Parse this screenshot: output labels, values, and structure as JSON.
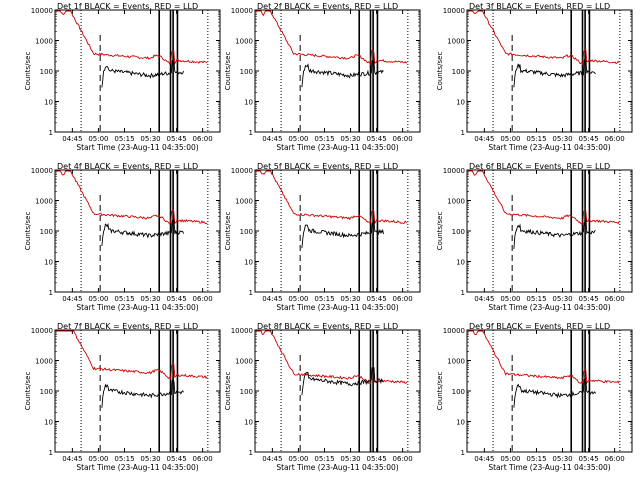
{
  "chart_data": {
    "type": "line",
    "grid": false,
    "ylabel": "Counts/sec",
    "xlabel": "Start Time (23-Aug-11 04:35:00)",
    "x_tick_labels": [
      "04:45",
      "05:00",
      "05:15",
      "05:30",
      "05:45",
      "06:00"
    ],
    "xlim_minutes_after_0435": [
      0,
      95
    ],
    "y_scale": "log",
    "ylim": [
      1,
      10000
    ],
    "y_tick_labels": [
      "1",
      "10",
      "100",
      "1000",
      "10000"
    ],
    "legend_text": "BLACK = Events, RED = LLD",
    "colors": {
      "events": "#000000",
      "lld": "#cc0000"
    },
    "panels": [
      {
        "title": "Det 1f BLACK = Events, RED = LLD"
      },
      {
        "title": "Det 2f BLACK = Events, RED = LLD"
      },
      {
        "title": "Det 3f BLACK = Events, RED = LLD"
      },
      {
        "title": "Det 4f BLACK = Events, RED = LLD"
      },
      {
        "title": "Det 5f BLACK = Events, RED = LLD"
      },
      {
        "title": "Det 6f BLACK = Events, RED = LLD"
      },
      {
        "title": "Det 7f BLACK = Events, RED = LLD"
      },
      {
        "title": "Det 8f BLACK = Events, RED = LLD"
      },
      {
        "title": "Det 9f BLACK = Events, RED = LLD"
      }
    ]
  }
}
